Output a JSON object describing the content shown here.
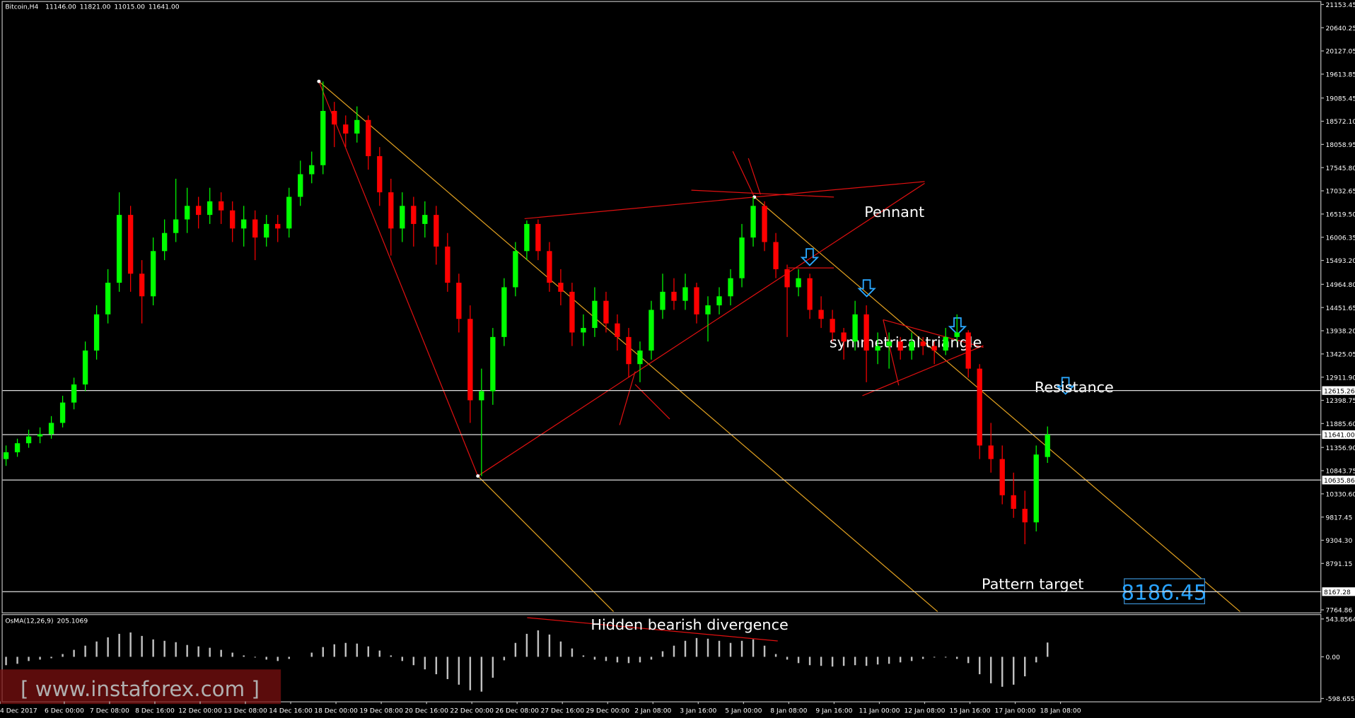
{
  "header": {
    "symbol": "Bitcoin,H4",
    "ohlc_labels": [
      "11146.00",
      "11821.00",
      "11015.00",
      "11641.00"
    ]
  },
  "chart_data": {
    "type": "candlestick",
    "up_color": "#00ff00",
    "down_color": "#ff0000",
    "ylim": [
      7764.86,
      21153.45
    ],
    "yticks": [
      {
        "value": 21153.45,
        "label": "21153.45"
      },
      {
        "value": 20640.25,
        "label": "20640.25"
      },
      {
        "value": 20127.05,
        "label": "20127.05"
      },
      {
        "value": 19613.85,
        "label": "19613.85"
      },
      {
        "value": 19085.45,
        "label": "19085.45"
      },
      {
        "value": 18572.1,
        "label": "18572.10"
      },
      {
        "value": 18058.95,
        "label": "18058.95"
      },
      {
        "value": 17545.8,
        "label": "17545.80"
      },
      {
        "value": 17032.65,
        "label": "17032.65"
      },
      {
        "value": 16519.5,
        "label": "16519.50"
      },
      {
        "value": 16006.35,
        "label": "16006.35"
      },
      {
        "value": 15493.2,
        "label": "15493.20"
      },
      {
        "value": 14964.8,
        "label": "14964.80"
      },
      {
        "value": 14451.65,
        "label": "14451.65"
      },
      {
        "value": 13938.2,
        "label": "13938.20"
      },
      {
        "value": 13425.05,
        "label": "13425.05"
      },
      {
        "value": 12911.9,
        "label": "12911.90"
      },
      {
        "value": 12398.75,
        "label": "12398.75"
      },
      {
        "value": 11885.6,
        "label": "11885.60"
      },
      {
        "value": 11356.9,
        "label": "11356.90"
      },
      {
        "value": 10843.75,
        "label": "10843.75"
      },
      {
        "value": 10330.6,
        "label": "10330.60"
      },
      {
        "value": 9817.45,
        "label": "9817.45"
      },
      {
        "value": 9304.3,
        "label": "9304.30"
      },
      {
        "value": 8791.15,
        "label": "8791.15"
      },
      {
        "value": 7764.86,
        "label": "7764.86"
      }
    ],
    "hlines": [
      {
        "value": 12615.26,
        "label": "12615.26"
      },
      {
        "value": 11641,
        "label": "11641.00"
      },
      {
        "value": 10635.86,
        "label": "10635.86"
      },
      {
        "value": 8167.28,
        "label": "8167.28"
      }
    ],
    "x_labels": [
      "4 Dec 2017",
      "6 Dec 00:00",
      "7 Dec 08:00",
      "8 Dec 16:00",
      "12 Dec 00:00",
      "13 Dec 08:00",
      "14 Dec 16:00",
      "18 Dec 00:00",
      "19 Dec 08:00",
      "20 Dec 16:00",
      "22 Dec 00:00",
      "26 Dec 08:00",
      "27 Dec 16:00",
      "29 Dec 00:00",
      "2 Jan 08:00",
      "3 Jan 16:00",
      "5 Jan 00:00",
      "8 Jan 08:00",
      "9 Jan 16:00",
      "11 Jan 00:00",
      "12 Jan 08:00",
      "15 Jan 16:00",
      "17 Jan 00:00",
      "18 Jan 08:00"
    ],
    "ohlc": [
      [
        11100,
        11400,
        10950,
        11250
      ],
      [
        11250,
        11550,
        11150,
        11450
      ],
      [
        11450,
        11750,
        11350,
        11600
      ],
      [
        11600,
        11800,
        11450,
        11650
      ],
      [
        11650,
        12050,
        11550,
        11900
      ],
      [
        11900,
        12500,
        11800,
        12350
      ],
      [
        12350,
        12900,
        12200,
        12750
      ],
      [
        12750,
        13700,
        12600,
        13500
      ],
      [
        13500,
        14500,
        13300,
        14300
      ],
      [
        14300,
        15300,
        14100,
        15000
      ],
      [
        15000,
        17000,
        14800,
        16500
      ],
      [
        16500,
        16700,
        14800,
        15200
      ],
      [
        15200,
        15500,
        14100,
        14700
      ],
      [
        14700,
        16000,
        14500,
        15700
      ],
      [
        15700,
        16400,
        15500,
        16100
      ],
      [
        16100,
        17300,
        15900,
        16400
      ],
      [
        16400,
        17100,
        16100,
        16700
      ],
      [
        16700,
        16900,
        16200,
        16500
      ],
      [
        16500,
        17100,
        16300,
        16800
      ],
      [
        16800,
        17000,
        16300,
        16600
      ],
      [
        16600,
        16800,
        15900,
        16200
      ],
      [
        16200,
        16700,
        15800,
        16400
      ],
      [
        16400,
        16600,
        15500,
        16000
      ],
      [
        16000,
        16500,
        15800,
        16300
      ],
      [
        16300,
        16500,
        15900,
        16200
      ],
      [
        16200,
        17100,
        16000,
        16900
      ],
      [
        16900,
        17700,
        16700,
        17400
      ],
      [
        17400,
        17900,
        17200,
        17600
      ],
      [
        17600,
        19450,
        17400,
        18800
      ],
      [
        18800,
        19000,
        18000,
        18500
      ],
      [
        18500,
        18700,
        18000,
        18300
      ],
      [
        18300,
        18900,
        18100,
        18600
      ],
      [
        18600,
        18700,
        17500,
        17800
      ],
      [
        17800,
        18000,
        16700,
        17000
      ],
      [
        17000,
        17300,
        15600,
        16200
      ],
      [
        16200,
        17000,
        15900,
        16700
      ],
      [
        16700,
        16900,
        15800,
        16300
      ],
      [
        16300,
        16800,
        16000,
        16500
      ],
      [
        16500,
        16700,
        15400,
        15800
      ],
      [
        15800,
        16100,
        14800,
        15000
      ],
      [
        15000,
        15200,
        13900,
        14200
      ],
      [
        14200,
        14500,
        11900,
        12400
      ],
      [
        12400,
        13100,
        10725,
        12600
      ],
      [
        12600,
        14000,
        12300,
        13800
      ],
      [
        13800,
        15100,
        13600,
        14900
      ],
      [
        14900,
        15900,
        14700,
        15700
      ],
      [
        15700,
        16378,
        15500,
        16300
      ],
      [
        16300,
        16400,
        15500,
        15700
      ],
      [
        15700,
        15900,
        14800,
        15000
      ],
      [
        15000,
        15300,
        14500,
        14800
      ],
      [
        14800,
        15000,
        13600,
        13900
      ],
      [
        13900,
        14300,
        13600,
        14000
      ],
      [
        14000,
        14900,
        13800,
        14600
      ],
      [
        14600,
        14800,
        13900,
        14100
      ],
      [
        14100,
        14300,
        13500,
        13800
      ],
      [
        13800,
        14000,
        12900,
        13200
      ],
      [
        13200,
        13700,
        12800,
        13500
      ],
      [
        13500,
        14600,
        13300,
        14400
      ],
      [
        14400,
        15200,
        14200,
        14800
      ],
      [
        14800,
        15100,
        14400,
        14600
      ],
      [
        14600,
        15200,
        14400,
        14900
      ],
      [
        14900,
        15000,
        14100,
        14300
      ],
      [
        14300,
        14700,
        13700,
        14500
      ],
      [
        14500,
        14900,
        14300,
        14700
      ],
      [
        14700,
        15300,
        14500,
        15100
      ],
      [
        15100,
        16300,
        14900,
        16000
      ],
      [
        16000,
        16894,
        15800,
        16700
      ],
      [
        16700,
        16800,
        15700,
        15900
      ],
      [
        15900,
        16100,
        15100,
        15300
      ],
      [
        15300,
        15400,
        13800,
        14900
      ],
      [
        14900,
        15300,
        14700,
        15100
      ],
      [
        15100,
        15200,
        14200,
        14400
      ],
      [
        14400,
        14700,
        14000,
        14200
      ],
      [
        14200,
        14400,
        13700,
        13900
      ],
      [
        13900,
        14000,
        13300,
        13700
      ],
      [
        13700,
        14600,
        13500,
        14300
      ],
      [
        14300,
        14500,
        12800,
        13500
      ],
      [
        13500,
        13900,
        13200,
        13600
      ],
      [
        13600,
        13900,
        13100,
        13700
      ],
      [
        13700,
        13800,
        13300,
        13500
      ],
      [
        13500,
        13900,
        13300,
        13700
      ],
      [
        13700,
        13800,
        13400,
        13600
      ],
      [
        13600,
        13700,
        13200,
        13500
      ],
      [
        13500,
        14000,
        13400,
        13800
      ],
      [
        13800,
        14300,
        13700,
        13900
      ],
      [
        13900,
        13950,
        12900,
        13100
      ],
      [
        13100,
        13200,
        11100,
        11400
      ],
      [
        11400,
        11900,
        10800,
        11100
      ],
      [
        11100,
        11400,
        10100,
        10300
      ],
      [
        10300,
        10800,
        9800,
        10000
      ],
      [
        10000,
        10400,
        9217,
        9700
      ],
      [
        9700,
        11400,
        9500,
        11200
      ],
      [
        11146,
        11821,
        11015,
        11641
      ]
    ],
    "oscillator": {
      "type": "bar",
      "name": "OsMA(12,26,9)",
      "color": "#c0c0c0",
      "ylim": [
        -640,
        600
      ],
      "yticks": [
        543.8564,
        {
          "value": 0,
          "label": "0.00"
        },
        -598.6558
      ],
      "values": [
        -120,
        -100,
        -60,
        -40,
        -20,
        40,
        100,
        160,
        220,
        280,
        330,
        350,
        300,
        250,
        230,
        210,
        170,
        150,
        130,
        100,
        60,
        20,
        -10,
        -40,
        -60,
        -30,
        0,
        60,
        140,
        180,
        200,
        190,
        150,
        90,
        20,
        -60,
        -120,
        -180,
        -250,
        -320,
        -400,
        -480,
        -500,
        -300,
        -50,
        200,
        330,
        380,
        320,
        220,
        120,
        20,
        -40,
        -60,
        -80,
        -90,
        -80,
        -40,
        80,
        160,
        230,
        270,
        260,
        230,
        200,
        230,
        250,
        160,
        40,
        -40,
        -90,
        -120,
        -130,
        -140,
        -130,
        -120,
        -130,
        -110,
        -100,
        -80,
        -60,
        -30,
        -10,
        -10,
        -30,
        -90,
        -250,
        -380,
        -430,
        -400,
        -280,
        -80,
        205.1069
      ]
    },
    "annotations": {
      "pennant": "Pennant",
      "triangle": "symmetrical triangle",
      "resistance": "Resistance",
      "target_text": "Pattern target",
      "divergence": "Hidden bearish divergence"
    },
    "target": 8186.45
  },
  "watermark": "[ www.instaforex.com ]"
}
